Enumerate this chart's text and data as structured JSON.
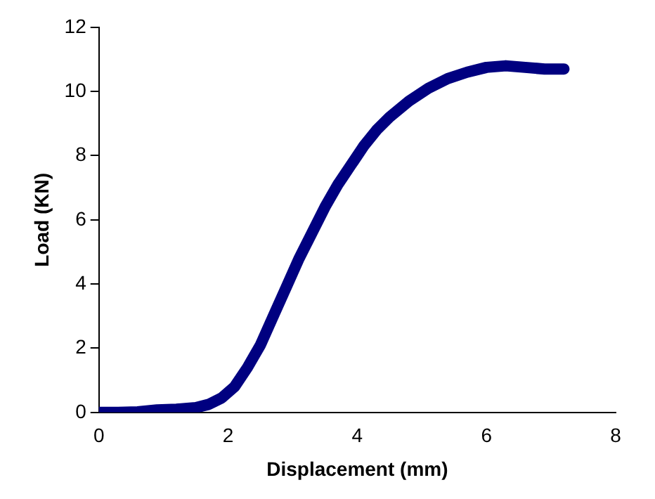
{
  "chart_data": {
    "type": "line",
    "xlabel": "Displacement (mm)",
    "ylabel": "Load (KN)",
    "x": [
      0,
      0.3,
      0.6,
      0.9,
      1.2,
      1.5,
      1.7,
      1.9,
      2.1,
      2.3,
      2.5,
      2.7,
      2.9,
      3.1,
      3.3,
      3.5,
      3.7,
      3.9,
      4.1,
      4.3,
      4.5,
      4.8,
      5.1,
      5.4,
      5.7,
      6.0,
      6.3,
      6.6,
      6.9,
      7.2
    ],
    "series": [
      {
        "color": "#000080",
        "values": [
          0,
          0,
          0.02,
          0.08,
          0.1,
          0.15,
          0.25,
          0.45,
          0.8,
          1.4,
          2.1,
          3.0,
          3.9,
          4.8,
          5.6,
          6.4,
          7.1,
          7.7,
          8.3,
          8.8,
          9.2,
          9.7,
          10.1,
          10.4,
          10.6,
          10.75,
          10.8,
          10.75,
          10.7,
          10.7
        ]
      }
    ],
    "xlim": [
      0,
      8
    ],
    "xticks": [
      0,
      2,
      4,
      6,
      8
    ],
    "ylim": [
      0,
      12
    ],
    "yticks": [
      0,
      2,
      4,
      6,
      8,
      10,
      12
    ],
    "grid": false,
    "legend": false,
    "marker": "none",
    "line_style": "solid"
  }
}
